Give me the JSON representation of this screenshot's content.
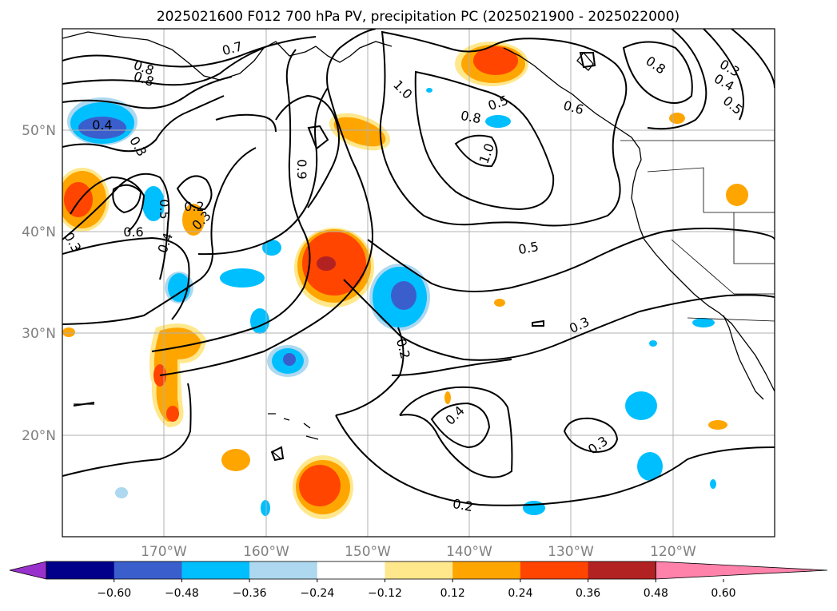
{
  "title": "2025021600 F012 700 hPa PV, precipitation PC (2025021900 - 2025022000)",
  "latitude_labels": [
    "50°N",
    "40°N",
    "30°N",
    "20°N"
  ],
  "longitude_labels": [
    "170°W",
    "160°W",
    "150°W",
    "140°W",
    "130°W",
    "120°W"
  ],
  "colorbar": {
    "tick_labels": [
      "−0.60",
      "−0.48",
      "−0.36",
      "−0.24",
      "−0.12",
      "0.12",
      "0.24",
      "0.36",
      "0.48",
      "0.60"
    ],
    "colors": [
      "#9932cc",
      "#00008b",
      "#3a5fcd",
      "#00bfff",
      "#add8f0",
      "#ffffff",
      "#ffe78c",
      "#ffa500",
      "#ff4500",
      "#b22222",
      "#ff82ab"
    ]
  },
  "contour_labels": [
    "0.7",
    "0.8",
    "0.8",
    "1.0",
    "0.5",
    "0.8",
    "1.0",
    "0.6",
    "0.8",
    "0.3",
    "0.4",
    "0.5",
    "0.4",
    "0.3",
    "0.9",
    "0.5",
    "0.2",
    "0.3",
    "0.6",
    "0.4",
    "0.3",
    "0.5",
    "0.2",
    "0.3",
    "0.4",
    "0.3",
    "0.2"
  ],
  "chart_data": {
    "type": "heatmap",
    "title": "2025021600 F012 700 hPa PV, precipitation PC (2025021900 - 2025022000)",
    "fields": {
      "shaded": "precipitation PC",
      "contours": "700 hPa PV",
      "contour_levels": [
        0.2,
        0.3,
        0.4,
        0.5,
        0.6,
        0.7,
        0.8,
        0.9,
        1.0
      ]
    },
    "colorbar_levels": [
      -0.6,
      -0.48,
      -0.36,
      -0.24,
      -0.12,
      0.12,
      0.24,
      0.36,
      0.48,
      0.6
    ],
    "lon_range": [
      "180°W",
      "110°W"
    ],
    "lat_range": [
      "10°N",
      "60°N"
    ],
    "grid": true
  }
}
